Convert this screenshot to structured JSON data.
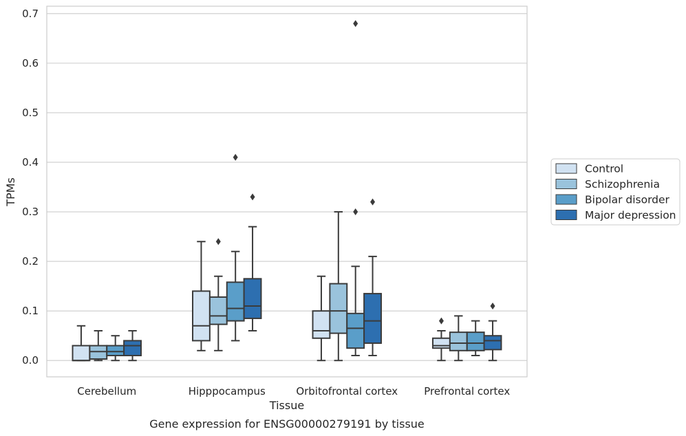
{
  "chart_data": {
    "type": "boxplot",
    "caption": "Gene expression for ENSG00000279191 by tissue",
    "xlabel": "Tissue",
    "ylabel": "TPMs",
    "ylim": [
      -0.033,
      0.715
    ],
    "yticks": [
      0.0,
      0.1,
      0.2,
      0.3,
      0.4,
      0.5,
      0.6,
      0.7
    ],
    "ytick_labels": [
      "0.0",
      "0.1",
      "0.2",
      "0.3",
      "0.4",
      "0.5",
      "0.6",
      "0.7"
    ],
    "grid": "horizontal",
    "legend_position": "right",
    "categories": [
      "Cerebellum",
      "Hipppocampus",
      "Orbitofrontal cortex",
      "Prefrontal cortex"
    ],
    "series": [
      {
        "name": "Control",
        "color": "#d1e2f2",
        "boxes": [
          {
            "whislo": 0.0,
            "q1": 0.0,
            "med": 0.0,
            "q3": 0.03,
            "whishi": 0.07,
            "fliers": []
          },
          {
            "whislo": 0.02,
            "q1": 0.04,
            "med": 0.07,
            "q3": 0.14,
            "whishi": 0.24,
            "fliers": []
          },
          {
            "whislo": 0.0,
            "q1": 0.045,
            "med": 0.06,
            "q3": 0.1,
            "whishi": 0.17,
            "fliers": []
          },
          {
            "whislo": 0.0,
            "q1": 0.025,
            "med": 0.03,
            "q3": 0.045,
            "whishi": 0.06,
            "fliers": [
              0.08
            ]
          }
        ]
      },
      {
        "name": "Schizophrenia",
        "color": "#9ac3dc",
        "boxes": [
          {
            "whislo": 0.0,
            "q1": 0.003,
            "med": 0.018,
            "q3": 0.03,
            "whishi": 0.06,
            "fliers": []
          },
          {
            "whislo": 0.02,
            "q1": 0.073,
            "med": 0.09,
            "q3": 0.128,
            "whishi": 0.17,
            "fliers": [
              0.24
            ]
          },
          {
            "whislo": 0.0,
            "q1": 0.055,
            "med": 0.1,
            "q3": 0.155,
            "whishi": 0.3,
            "fliers": []
          },
          {
            "whislo": 0.0,
            "q1": 0.02,
            "med": 0.035,
            "q3": 0.057,
            "whishi": 0.09,
            "fliers": []
          }
        ]
      },
      {
        "name": "Bipolar disorder",
        "color": "#5a9ec9",
        "boxes": [
          {
            "whislo": 0.0,
            "q1": 0.01,
            "med": 0.018,
            "q3": 0.03,
            "whishi": 0.05,
            "fliers": []
          },
          {
            "whislo": 0.04,
            "q1": 0.08,
            "med": 0.105,
            "q3": 0.158,
            "whishi": 0.22,
            "fliers": [
              0.41
            ]
          },
          {
            "whislo": 0.01,
            "q1": 0.025,
            "med": 0.065,
            "q3": 0.095,
            "whishi": 0.19,
            "fliers": [
              0.3,
              0.68
            ]
          },
          {
            "whislo": 0.01,
            "q1": 0.02,
            "med": 0.035,
            "q3": 0.057,
            "whishi": 0.08,
            "fliers": []
          }
        ]
      },
      {
        "name": "Major depression",
        "color": "#2d6fb0",
        "boxes": [
          {
            "whislo": 0.0,
            "q1": 0.01,
            "med": 0.03,
            "q3": 0.04,
            "whishi": 0.06,
            "fliers": []
          },
          {
            "whislo": 0.06,
            "q1": 0.085,
            "med": 0.11,
            "q3": 0.165,
            "whishi": 0.27,
            "fliers": [
              0.33
            ]
          },
          {
            "whislo": 0.01,
            "q1": 0.035,
            "med": 0.08,
            "q3": 0.135,
            "whishi": 0.21,
            "fliers": [
              0.32
            ]
          },
          {
            "whislo": 0.0,
            "q1": 0.022,
            "med": 0.04,
            "q3": 0.05,
            "whishi": 0.08,
            "fliers": [
              0.11
            ]
          }
        ]
      }
    ]
  }
}
